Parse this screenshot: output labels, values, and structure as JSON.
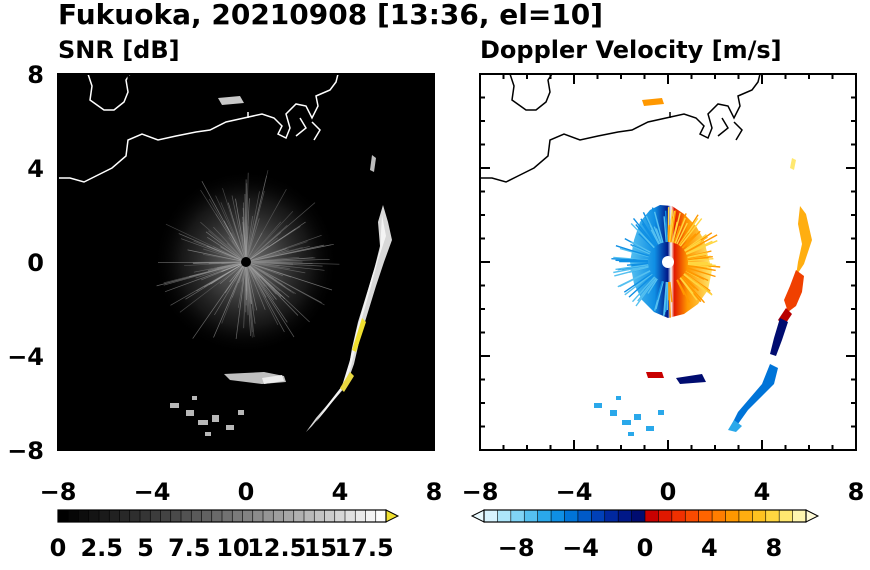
{
  "figure": {
    "title": "Fukuoka, 20210908 [13:36, el=10]"
  },
  "chart_data": [
    {
      "type": "heatmap",
      "title": "SNR [dB]",
      "variable": "SNR",
      "unit": "dB",
      "xlim": [
        -8,
        8
      ],
      "ylim": [
        -8,
        8
      ],
      "xticks": [
        -8,
        -4,
        0,
        4,
        8
      ],
      "yticks": [
        -8,
        -4,
        0,
        4,
        8
      ],
      "tick_labels": [
        "−8",
        "−4",
        "0",
        "4",
        "8"
      ],
      "background_color": "#000000",
      "colorbar": {
        "min": 0,
        "max": 18.75,
        "extend": "max",
        "tick_values": [
          0,
          2.5,
          5,
          7.5,
          10,
          12.5,
          15,
          17.5
        ],
        "tick_labels": [
          "0",
          "2.5",
          "5",
          "7.5",
          "10",
          "12.5",
          "15",
          "17.5"
        ],
        "colors": [
          "#000000",
          "#060606",
          "#0d0d0d",
          "#141414",
          "#1a1a1a",
          "#212121",
          "#282828",
          "#2e2e2e",
          "#353535",
          "#3c3c3c",
          "#434343",
          "#4a4a4a",
          "#525252",
          "#5a5a5a",
          "#626262",
          "#6a6a6a",
          "#727272",
          "#7b7b7b",
          "#838383",
          "#8c8c8c",
          "#959595",
          "#9e9e9e",
          "#a7a7a7",
          "#b0b0b0",
          "#b9b9b9",
          "#c3c3c3",
          "#cccccc",
          "#d6d6d6",
          "#e0e0e0",
          "#eaeaea",
          "#f4f4f4",
          "#fdfdfd"
        ],
        "extend_color": "#f0e030"
      }
    },
    {
      "type": "heatmap",
      "title": "Doppler Velocity [m/s]",
      "variable": "Doppler Velocity",
      "unit": "m/s",
      "xlim": [
        -8,
        8
      ],
      "ylim": [
        -8,
        8
      ],
      "xticks": [
        -8,
        -4,
        0,
        4,
        8
      ],
      "yticks": [
        -8,
        -4,
        0,
        4,
        8
      ],
      "tick_labels": [
        "−8",
        "−4",
        "0",
        "4",
        "8"
      ],
      "background_color": "#ffffff",
      "colorbar": {
        "min": -10,
        "max": 10,
        "extend": "both",
        "tick_values": [
          -8,
          -4,
          0,
          4,
          8
        ],
        "tick_labels": [
          "−8",
          "−4",
          "0",
          "4",
          "8"
        ],
        "colors": [
          "#d8f4ff",
          "#aee6fa",
          "#80d4f6",
          "#55c0f0",
          "#2aa8ea",
          "#0f8fe4",
          "#0074d8",
          "#005ac8",
          "#0040b8",
          "#0028a0",
          "#001888",
          "#000c70",
          "#c80000",
          "#e01800",
          "#f03000",
          "#f84a00",
          "#ff6400",
          "#ff7e00",
          "#ff9800",
          "#ffae10",
          "#ffc220",
          "#ffd640",
          "#ffe870",
          "#fff6b0"
        ],
        "extend_low_color": "#eafaff",
        "extend_high_color": "#fffbd8"
      }
    }
  ]
}
